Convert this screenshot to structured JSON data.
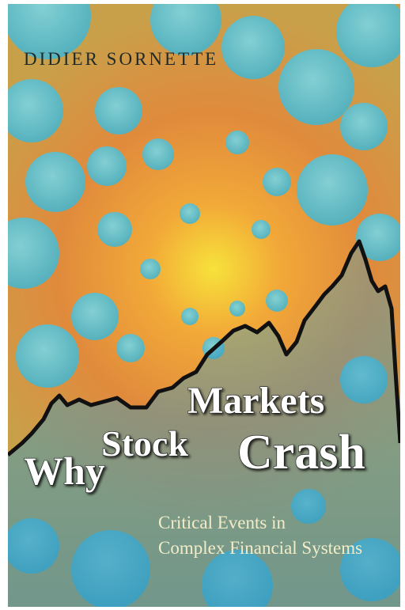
{
  "cover": {
    "author": "DIDIER SORNETTE",
    "title": {
      "word1": "Why",
      "word2": "Stock",
      "word3": "Markets",
      "word4": "Crash"
    },
    "subtitle": {
      "line1": "Critical Events in",
      "line2": "Complex Financial Systems"
    }
  }
}
